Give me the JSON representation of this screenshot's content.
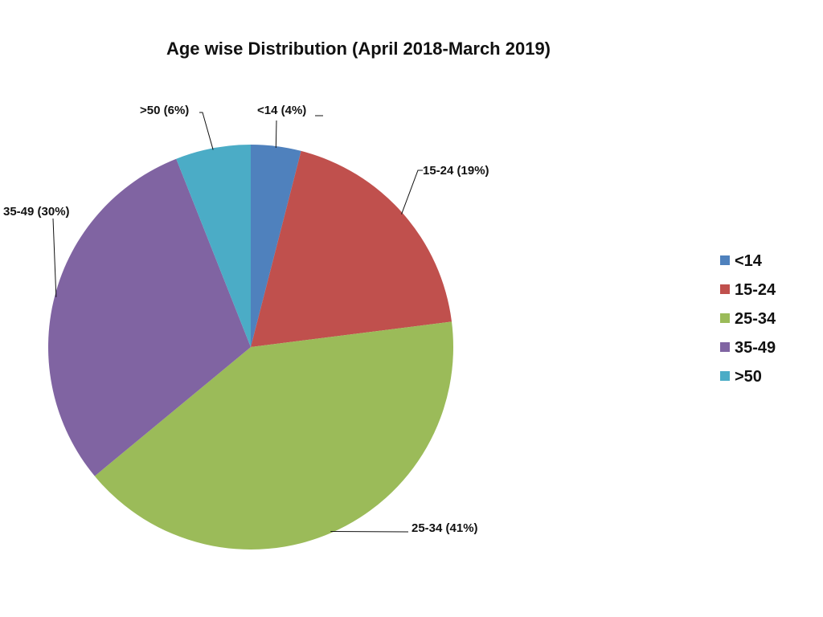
{
  "chart_data": {
    "type": "pie",
    "title": "Age wise Distribution (April 2018-March 2019)",
    "categories": [
      "<14",
      "15-24",
      "25-34",
      "35-49",
      ">50"
    ],
    "values": [
      4,
      19,
      41,
      30,
      6
    ],
    "unit": "%",
    "data_labels": [
      "<14 (4%)",
      "15-24 (19%)",
      "25-34 (41%)",
      "35-49 (30%)",
      ">50 (6%)"
    ],
    "colors": [
      "#4F81BD",
      "#C0504D",
      "#9BBB59",
      "#8064A2",
      "#4BACC6"
    ],
    "legend": {
      "position": "right",
      "entries": [
        "<14",
        "15-24",
        "25-34",
        "35-49",
        ">50"
      ]
    },
    "start_angle": "12 o'clock",
    "direction": "clockwise"
  }
}
